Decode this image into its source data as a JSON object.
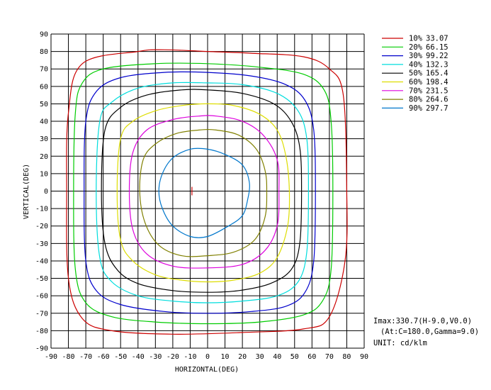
{
  "chart_data": {
    "type": "contour",
    "xlabel": "HORIZONTAL(DEG)",
    "ylabel": "VERTICAL(DEG)",
    "xlim": [
      -90,
      90
    ],
    "ylim": [
      -90,
      90
    ],
    "x_ticks": [
      "-90",
      "-80",
      "-70",
      "-60",
      "-50",
      "-40",
      "-30",
      "-20",
      "-10",
      "0",
      "10",
      "20",
      "30",
      "40",
      "50",
      "60",
      "70",
      "80",
      "90"
    ],
    "y_ticks": [
      "90",
      "80",
      "70",
      "60",
      "50",
      "40",
      "30",
      "20",
      "10",
      "0",
      "-10",
      "-20",
      "-30",
      "-40",
      "-50",
      "-60",
      "-70",
      "-80",
      "-90"
    ],
    "grid": true,
    "legend_position": "top-right",
    "series": [
      {
        "name": "10%",
        "value": "33.07",
        "color": "#cc0000",
        "points": [
          [
            -80,
            -50
          ],
          [
            -81,
            0
          ],
          [
            -80,
            45
          ],
          [
            -72,
            73
          ],
          [
            -40,
            80
          ],
          [
            -25,
            81
          ],
          [
            0,
            80
          ],
          [
            25,
            79
          ],
          [
            55,
            77
          ],
          [
            70,
            70
          ],
          [
            78,
            55
          ],
          [
            80,
            0
          ],
          [
            79,
            -40
          ],
          [
            70,
            -72
          ],
          [
            55,
            -79
          ],
          [
            20,
            -81
          ],
          [
            -20,
            -82
          ],
          [
            -55,
            -80
          ],
          [
            -72,
            -73
          ],
          [
            -80,
            -50
          ]
        ]
      },
      {
        "name": "20%",
        "value": "66.15",
        "color": "#00cc00",
        "points": [
          [
            -77,
            0
          ],
          [
            -76,
            45
          ],
          [
            -72,
            62
          ],
          [
            -60,
            70
          ],
          [
            -30,
            73
          ],
          [
            0,
            73
          ],
          [
            30,
            71
          ],
          [
            55,
            67
          ],
          [
            67,
            58
          ],
          [
            71,
            40
          ],
          [
            72,
            0
          ],
          [
            71,
            -45
          ],
          [
            66,
            -63
          ],
          [
            55,
            -71
          ],
          [
            30,
            -75
          ],
          [
            0,
            -76
          ],
          [
            -30,
            -75
          ],
          [
            -55,
            -72
          ],
          [
            -70,
            -64
          ],
          [
            -76,
            -45
          ],
          [
            -77,
            0
          ]
        ]
      },
      {
        "name": "30%",
        "value": "99.22",
        "color": "#0000cc",
        "points": [
          [
            -71,
            0
          ],
          [
            -70,
            40
          ],
          [
            -64,
            57
          ],
          [
            -50,
            65
          ],
          [
            -25,
            68
          ],
          [
            0,
            68
          ],
          [
            25,
            66
          ],
          [
            45,
            61
          ],
          [
            56,
            52
          ],
          [
            61,
            35
          ],
          [
            62,
            0
          ],
          [
            61,
            -40
          ],
          [
            56,
            -58
          ],
          [
            45,
            -66
          ],
          [
            25,
            -69
          ],
          [
            0,
            -70
          ],
          [
            -25,
            -69
          ],
          [
            -50,
            -65
          ],
          [
            -64,
            -57
          ],
          [
            -70,
            -40
          ],
          [
            -71,
            0
          ]
        ]
      },
      {
        "name": "40%",
        "value": "132.3",
        "color": "#00dddd",
        "points": [
          [
            -64,
            0
          ],
          [
            -62,
            40
          ],
          [
            -55,
            51
          ],
          [
            -40,
            59
          ],
          [
            -20,
            62
          ],
          [
            0,
            62
          ],
          [
            20,
            61
          ],
          [
            40,
            56
          ],
          [
            52,
            46
          ],
          [
            57,
            30
          ],
          [
            58,
            0
          ],
          [
            57,
            -35
          ],
          [
            52,
            -52
          ],
          [
            40,
            -60
          ],
          [
            20,
            -63
          ],
          [
            0,
            -64
          ],
          [
            -20,
            -63
          ],
          [
            -40,
            -60
          ],
          [
            -55,
            -52
          ],
          [
            -62,
            -38
          ],
          [
            -64,
            0
          ]
        ]
      },
      {
        "name": "50%",
        "value": "165.4",
        "color": "#000000",
        "points": [
          [
            -61,
            0
          ],
          [
            -59,
            35
          ],
          [
            -50,
            48
          ],
          [
            -35,
            55
          ],
          [
            -15,
            58
          ],
          [
            0,
            58
          ],
          [
            20,
            56
          ],
          [
            38,
            50
          ],
          [
            48,
            40
          ],
          [
            53,
            25
          ],
          [
            54,
            0
          ],
          [
            53,
            -30
          ],
          [
            48,
            -45
          ],
          [
            36,
            -53
          ],
          [
            18,
            -57
          ],
          [
            0,
            -58
          ],
          [
            -20,
            -57
          ],
          [
            -40,
            -53
          ],
          [
            -52,
            -45
          ],
          [
            -59,
            -30
          ],
          [
            -61,
            0
          ]
        ]
      },
      {
        "name": "60%",
        "value": "198.4",
        "color": "#dddd00",
        "points": [
          [
            -52,
            0
          ],
          [
            -50,
            30
          ],
          [
            -43,
            40
          ],
          [
            -30,
            46
          ],
          [
            -15,
            49
          ],
          [
            0,
            50
          ],
          [
            15,
            49
          ],
          [
            30,
            44
          ],
          [
            40,
            35
          ],
          [
            45,
            20
          ],
          [
            47,
            0
          ],
          [
            46,
            -20
          ],
          [
            40,
            -38
          ],
          [
            30,
            -47
          ],
          [
            15,
            -51
          ],
          [
            0,
            -52
          ],
          [
            -15,
            -51
          ],
          [
            -30,
            -48
          ],
          [
            -43,
            -40
          ],
          [
            -50,
            -28
          ],
          [
            -52,
            0
          ]
        ]
      },
      {
        "name": "70%",
        "value": "231.5",
        "color": "#dd00dd",
        "points": [
          [
            -45,
            0
          ],
          [
            -43,
            22
          ],
          [
            -35,
            35
          ],
          [
            -20,
            41
          ],
          [
            -5,
            43
          ],
          [
            5,
            43
          ],
          [
            20,
            40
          ],
          [
            32,
            32
          ],
          [
            40,
            18
          ],
          [
            41,
            0
          ],
          [
            40,
            -20
          ],
          [
            33,
            -34
          ],
          [
            20,
            -42
          ],
          [
            0,
            -44
          ],
          [
            -20,
            -43
          ],
          [
            -35,
            -36
          ],
          [
            -43,
            -22
          ],
          [
            -45,
            0
          ]
        ]
      },
      {
        "name": "80%",
        "value": "264.6",
        "color": "#808000",
        "points": [
          [
            -39,
            0
          ],
          [
            -37,
            18
          ],
          [
            -30,
            27
          ],
          [
            -18,
            33
          ],
          [
            -5,
            35
          ],
          [
            5,
            35
          ],
          [
            18,
            32
          ],
          [
            28,
            24
          ],
          [
            33,
            12
          ],
          [
            34,
            0
          ],
          [
            33,
            -15
          ],
          [
            27,
            -28
          ],
          [
            15,
            -35
          ],
          [
            0,
            -37
          ],
          [
            -15,
            -37
          ],
          [
            -28,
            -31
          ],
          [
            -36,
            -18
          ],
          [
            -39,
            0
          ]
        ]
      },
      {
        "name": "90%",
        "value": "297.7",
        "color": "#0077cc",
        "points": [
          [
            -28,
            0
          ],
          [
            -26,
            10
          ],
          [
            -20,
            19
          ],
          [
            -10,
            24
          ],
          [
            0,
            24
          ],
          [
            10,
            21
          ],
          [
            20,
            15
          ],
          [
            24,
            5
          ],
          [
            23,
            -5
          ],
          [
            20,
            -14
          ],
          [
            12,
            -20
          ],
          [
            0,
            -26
          ],
          [
            -10,
            -26
          ],
          [
            -20,
            -20
          ],
          [
            -26,
            -10
          ],
          [
            -28,
            0
          ]
        ]
      }
    ],
    "max_marker": {
      "h": -9.0,
      "v": 0.0
    }
  },
  "info": {
    "imax": "Imax:330.7(H-9.0,V0.0)",
    "at": "(At:C=180.0,Gamma=9.0)",
    "unit": "UNIT: cd/klm"
  }
}
